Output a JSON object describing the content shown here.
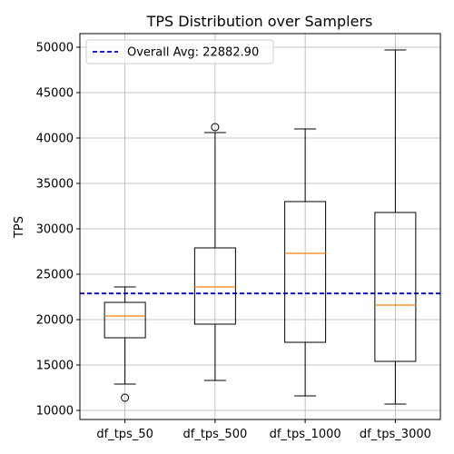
{
  "chart_data": {
    "type": "box",
    "title": "TPS Distribution over Samplers",
    "xlabel": "",
    "ylabel": "TPS",
    "ylim": [
      9000,
      51500
    ],
    "yticks": [
      10000,
      15000,
      20000,
      25000,
      30000,
      35000,
      40000,
      45000,
      50000
    ],
    "grid": true,
    "legend_position": "top-left",
    "categories": [
      "df_tps_50",
      "df_tps_500",
      "df_tps_1000",
      "df_tps_3000"
    ],
    "boxes": [
      {
        "name": "df_tps_50",
        "whisker_low": 12900,
        "q1": 18000,
        "median": 20400,
        "q3": 21900,
        "whisker_high": 23600,
        "outliers": [
          11400
        ]
      },
      {
        "name": "df_tps_500",
        "whisker_low": 13300,
        "q1": 19500,
        "median": 23600,
        "q3": 27900,
        "whisker_high": 40600,
        "outliers": [
          41200
        ]
      },
      {
        "name": "df_tps_1000",
        "whisker_low": 11600,
        "q1": 17500,
        "median": 27300,
        "q3": 33000,
        "whisker_high": 41000,
        "outliers": []
      },
      {
        "name": "df_tps_3000",
        "whisker_low": 10700,
        "q1": 15400,
        "median": 21600,
        "q3": 31800,
        "whisker_high": 49700,
        "outliers": []
      }
    ],
    "reference_line": {
      "label": "Overall Avg: 22882.90",
      "value": 22882.9,
      "color": "#0000cc",
      "style": "dashed"
    },
    "colors": {
      "box": "#000000",
      "median": "#ff7f0e",
      "grid": "#b0b0b0"
    }
  }
}
